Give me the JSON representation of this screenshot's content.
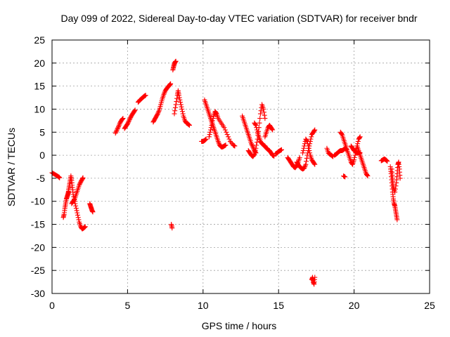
{
  "chart_data": {
    "type": "scatter",
    "title": "Day 099 of 2022, Sidereal Day-to-day VTEC variation (SDTVAR) for receiver bndr",
    "xlabel": "GPS time / hours",
    "ylabel": "SDTVAR / TECUs",
    "xlim": [
      0,
      25
    ],
    "ylim": [
      -30,
      25
    ],
    "xticks": [
      0,
      5,
      10,
      15,
      20,
      25
    ],
    "yticks": [
      -30,
      -25,
      -20,
      -15,
      -10,
      -5,
      0,
      5,
      10,
      15,
      20,
      25
    ],
    "xtick_labels": [
      "0",
      "5",
      "10",
      "15",
      "20",
      "25"
    ],
    "ytick_labels": [
      "-30",
      "-25",
      "-20",
      "-15",
      "-10",
      "-5",
      "0",
      "5",
      "10",
      "15",
      "20",
      "25"
    ],
    "grid": true,
    "marker": "+",
    "color": "#ff0000",
    "series": [
      {
        "name": "seg01",
        "values": [
          [
            0.0,
            -3.8
          ],
          [
            0.15,
            -4.1
          ],
          [
            0.3,
            -4.4
          ],
          [
            0.45,
            -4.7
          ],
          [
            0.5,
            -4.9
          ]
        ]
      },
      {
        "name": "seg02",
        "values": [
          [
            0.75,
            -13.5
          ],
          [
            0.8,
            -12.8
          ],
          [
            0.85,
            -11.5
          ],
          [
            0.9,
            -10.5
          ],
          [
            0.95,
            -9.5
          ],
          [
            1.0,
            -9.0
          ],
          [
            1.05,
            -8.5
          ],
          [
            1.1,
            -8.0
          ]
        ]
      },
      {
        "name": "seg03",
        "values": [
          [
            1.05,
            -8.5
          ],
          [
            1.1,
            -7.5
          ],
          [
            1.15,
            -6.5
          ],
          [
            1.2,
            -5.5
          ],
          [
            1.25,
            -4.5
          ],
          [
            1.3,
            -5.5
          ],
          [
            1.35,
            -7.0
          ],
          [
            1.4,
            -8.5
          ],
          [
            1.5,
            -10.0
          ],
          [
            1.6,
            -11.5
          ],
          [
            1.7,
            -13.0
          ],
          [
            1.8,
            -14.5
          ],
          [
            1.9,
            -15.5
          ],
          [
            2.0,
            -16.0
          ],
          [
            2.1,
            -15.8
          ],
          [
            2.2,
            -15.5
          ]
        ]
      },
      {
        "name": "seg04",
        "values": [
          [
            1.3,
            -10.5
          ],
          [
            1.4,
            -10.0
          ],
          [
            1.5,
            -9.5
          ],
          [
            1.6,
            -8.5
          ],
          [
            1.7,
            -7.5
          ],
          [
            1.8,
            -6.5
          ],
          [
            1.9,
            -5.8
          ],
          [
            2.0,
            -5.2
          ],
          [
            2.05,
            -4.9
          ]
        ]
      },
      {
        "name": "seg05",
        "values": [
          [
            2.5,
            -10.5
          ],
          [
            2.55,
            -11.0
          ],
          [
            2.6,
            -11.5
          ],
          [
            2.65,
            -12.0
          ],
          [
            2.7,
            -12.3
          ]
        ]
      },
      {
        "name": "seg06",
        "values": [
          [
            4.2,
            4.8
          ],
          [
            4.3,
            5.5
          ],
          [
            4.4,
            6.2
          ],
          [
            4.5,
            7.0
          ],
          [
            4.6,
            7.6
          ],
          [
            4.7,
            8.0
          ]
        ]
      },
      {
        "name": "seg07",
        "values": [
          [
            4.8,
            5.8
          ],
          [
            4.9,
            6.3
          ],
          [
            5.0,
            6.8
          ],
          [
            5.1,
            7.5
          ],
          [
            5.2,
            8.2
          ],
          [
            5.3,
            8.8
          ],
          [
            5.4,
            9.3
          ],
          [
            5.5,
            9.8
          ]
        ]
      },
      {
        "name": "seg08",
        "values": [
          [
            5.7,
            11.5
          ],
          [
            5.8,
            11.9
          ],
          [
            5.9,
            12.2
          ],
          [
            6.0,
            12.5
          ],
          [
            6.1,
            12.8
          ],
          [
            6.2,
            13.0
          ]
        ]
      },
      {
        "name": "seg09",
        "values": [
          [
            6.7,
            7.2
          ],
          [
            6.8,
            7.8
          ],
          [
            6.9,
            8.4
          ],
          [
            7.0,
            9.0
          ],
          [
            7.1,
            9.8
          ],
          [
            7.2,
            11.0
          ],
          [
            7.3,
            12.2
          ],
          [
            7.4,
            13.2
          ],
          [
            7.5,
            14.0
          ],
          [
            7.6,
            14.5
          ],
          [
            7.7,
            14.9
          ],
          [
            7.8,
            15.3
          ],
          [
            7.85,
            15.5
          ]
        ]
      },
      {
        "name": "seg10",
        "values": [
          [
            7.9,
            -15.0
          ],
          [
            7.95,
            -15.8
          ]
        ]
      },
      {
        "name": "seg11",
        "values": [
          [
            8.0,
            18.5
          ],
          [
            8.05,
            19.2
          ],
          [
            8.1,
            19.8
          ],
          [
            8.15,
            20.2
          ],
          [
            8.2,
            20.4
          ]
        ]
      },
      {
        "name": "seg12",
        "values": [
          [
            8.1,
            9.0
          ],
          [
            8.2,
            11.0
          ],
          [
            8.3,
            13.0
          ],
          [
            8.35,
            14.0
          ],
          [
            8.4,
            13.0
          ],
          [
            8.5,
            11.5
          ],
          [
            8.6,
            10.0
          ],
          [
            8.7,
            8.5
          ],
          [
            8.8,
            7.5
          ],
          [
            8.9,
            7.0
          ],
          [
            9.0,
            6.8
          ],
          [
            9.1,
            6.5
          ]
        ]
      },
      {
        "name": "seg13",
        "values": [
          [
            9.9,
            3.0
          ],
          [
            10.0,
            3.0
          ],
          [
            10.1,
            3.2
          ],
          [
            10.2,
            3.5
          ]
        ]
      },
      {
        "name": "seg14",
        "values": [
          [
            10.1,
            12.0
          ],
          [
            10.2,
            11.0
          ],
          [
            10.3,
            10.0
          ],
          [
            10.4,
            9.0
          ],
          [
            10.5,
            8.0
          ],
          [
            10.6,
            7.0
          ],
          [
            10.7,
            6.0
          ],
          [
            10.8,
            5.0
          ],
          [
            10.9,
            4.0
          ],
          [
            11.0,
            3.0
          ],
          [
            11.1,
            2.2
          ],
          [
            11.2,
            1.8
          ],
          [
            11.3,
            1.8
          ],
          [
            11.4,
            2.0
          ],
          [
            11.5,
            2.2
          ]
        ]
      },
      {
        "name": "seg15",
        "values": [
          [
            10.4,
            4.0
          ],
          [
            10.5,
            5.5
          ],
          [
            10.6,
            7.0
          ],
          [
            10.7,
            8.5
          ],
          [
            10.8,
            9.5
          ],
          [
            10.9,
            9.0
          ],
          [
            11.0,
            8.0
          ],
          [
            11.2,
            7.0
          ],
          [
            11.4,
            6.0
          ],
          [
            11.6,
            4.5
          ],
          [
            11.8,
            3.0
          ],
          [
            12.0,
            2.2
          ],
          [
            12.1,
            2.0
          ]
        ]
      },
      {
        "name": "seg16",
        "values": [
          [
            12.6,
            8.5
          ],
          [
            12.7,
            7.5
          ],
          [
            12.8,
            6.5
          ],
          [
            12.9,
            5.5
          ],
          [
            13.0,
            4.5
          ],
          [
            13.1,
            3.5
          ],
          [
            13.2,
            2.5
          ],
          [
            13.3,
            1.8
          ],
          [
            13.4,
            1.0
          ],
          [
            13.5,
            0.5
          ]
        ]
      },
      {
        "name": "seg17",
        "values": [
          [
            13.0,
            1.0
          ],
          [
            13.1,
            0.5
          ],
          [
            13.2,
            0.0
          ],
          [
            13.3,
            -0.3
          ],
          [
            13.4,
            0.2
          ],
          [
            13.5,
            1.5
          ],
          [
            13.6,
            3.5
          ],
          [
            13.7,
            6.0
          ],
          [
            13.8,
            9.0
          ],
          [
            13.9,
            11.0
          ],
          [
            14.0,
            10.0
          ],
          [
            14.1,
            8.0
          ]
        ]
      },
      {
        "name": "seg18",
        "values": [
          [
            13.4,
            7.0
          ],
          [
            13.5,
            6.5
          ],
          [
            13.6,
            5.0
          ],
          [
            13.7,
            4.0
          ],
          [
            13.8,
            3.0
          ],
          [
            13.9,
            2.5
          ],
          [
            14.0,
            2.2
          ],
          [
            14.1,
            2.0
          ],
          [
            14.2,
            1.5
          ],
          [
            14.3,
            1.2
          ],
          [
            14.4,
            1.0
          ],
          [
            14.5,
            0.5
          ],
          [
            14.6,
            0.0
          ],
          [
            14.7,
            -0.2
          ]
        ]
      },
      {
        "name": "seg19",
        "values": [
          [
            14.1,
            4.0
          ],
          [
            14.2,
            5.0
          ],
          [
            14.3,
            6.0
          ],
          [
            14.4,
            6.5
          ],
          [
            14.5,
            6.0
          ],
          [
            14.6,
            5.5
          ]
        ]
      },
      {
        "name": "seg20",
        "values": [
          [
            14.8,
            0.3
          ],
          [
            14.9,
            0.5
          ],
          [
            15.0,
            0.8
          ],
          [
            15.1,
            1.0
          ],
          [
            15.2,
            1.2
          ]
        ]
      },
      {
        "name": "seg21",
        "values": [
          [
            15.6,
            -0.5
          ],
          [
            15.7,
            -1.0
          ],
          [
            15.8,
            -1.5
          ],
          [
            15.9,
            -2.0
          ],
          [
            16.0,
            -2.5
          ],
          [
            16.1,
            -2.7
          ],
          [
            16.2,
            -2.3
          ],
          [
            16.3,
            -1.5
          ],
          [
            16.4,
            -0.5
          ]
        ]
      },
      {
        "name": "seg22",
        "values": [
          [
            16.2,
            -1.5
          ],
          [
            16.3,
            -2.0
          ],
          [
            16.4,
            -2.5
          ],
          [
            16.5,
            -2.8
          ],
          [
            16.6,
            -3.0
          ],
          [
            16.7,
            -2.8
          ],
          [
            16.8,
            -2.0
          ],
          [
            16.9,
            0.0
          ],
          [
            17.0,
            1.5
          ],
          [
            17.1,
            3.0
          ],
          [
            17.2,
            4.5
          ],
          [
            17.3,
            5.0
          ],
          [
            17.4,
            5.5
          ]
        ]
      },
      {
        "name": "seg23",
        "values": [
          [
            16.6,
            0.5
          ],
          [
            16.7,
            2.0
          ],
          [
            16.8,
            3.5
          ],
          [
            16.9,
            3.0
          ],
          [
            17.0,
            1.5
          ],
          [
            17.1,
            0.0
          ],
          [
            17.2,
            -1.0
          ],
          [
            17.3,
            -1.5
          ],
          [
            17.4,
            -2.0
          ]
        ]
      },
      {
        "name": "seg24",
        "values": [
          [
            17.2,
            -27.0
          ],
          [
            17.25,
            -26.5
          ],
          [
            17.3,
            -27.5
          ],
          [
            17.35,
            -28.0
          ],
          [
            17.4,
            -26.5
          ]
        ]
      },
      {
        "name": "seg25",
        "values": [
          [
            18.2,
            1.5
          ],
          [
            18.3,
            0.5
          ],
          [
            18.4,
            0.2
          ],
          [
            18.5,
            0.0
          ],
          [
            18.6,
            -0.3
          ]
        ]
      },
      {
        "name": "seg26",
        "values": [
          [
            18.7,
            0.0
          ],
          [
            18.8,
            0.2
          ],
          [
            18.9,
            0.5
          ],
          [
            19.0,
            0.8
          ],
          [
            19.1,
            1.0
          ],
          [
            19.2,
            1.0
          ],
          [
            19.3,
            1.2
          ],
          [
            19.4,
            1.5
          ],
          [
            19.5,
            1.2
          ]
        ]
      },
      {
        "name": "seg27",
        "values": [
          [
            19.3,
            -4.5
          ],
          [
            19.4,
            -4.7
          ]
        ]
      },
      {
        "name": "seg28",
        "values": [
          [
            19.1,
            5.0
          ],
          [
            19.2,
            4.5
          ],
          [
            19.3,
            3.5
          ],
          [
            19.4,
            2.5
          ],
          [
            19.5,
            1.5
          ],
          [
            19.6,
            0.5
          ],
          [
            19.7,
            -0.5
          ],
          [
            19.8,
            -1.5
          ],
          [
            19.9,
            -2.0
          ],
          [
            20.0,
            -1.0
          ],
          [
            20.1,
            0.5
          ],
          [
            20.2,
            2.0
          ],
          [
            20.3,
            3.5
          ],
          [
            20.4,
            4.0
          ]
        ]
      },
      {
        "name": "seg29",
        "values": [
          [
            19.8,
            2.0
          ],
          [
            19.9,
            1.5
          ],
          [
            20.0,
            1.0
          ],
          [
            20.1,
            0.8
          ],
          [
            20.2,
            0.5
          ],
          [
            20.3,
            0.5
          ],
          [
            20.4,
            0.5
          ]
        ]
      },
      {
        "name": "seg30",
        "values": [
          [
            20.2,
            2.0
          ],
          [
            20.3,
            1.0
          ],
          [
            20.4,
            0.0
          ],
          [
            20.5,
            -1.0
          ],
          [
            20.6,
            -2.0
          ],
          [
            20.7,
            -3.0
          ],
          [
            20.8,
            -4.0
          ],
          [
            20.9,
            -4.5
          ]
        ]
      },
      {
        "name": "seg31",
        "values": [
          [
            21.8,
            -1.2
          ],
          [
            21.9,
            -1.0
          ],
          [
            22.0,
            -0.8
          ],
          [
            22.1,
            -1.0
          ],
          [
            22.2,
            -1.3
          ]
        ]
      },
      {
        "name": "seg32",
        "values": [
          [
            22.4,
            -2.5
          ],
          [
            22.45,
            -4.0
          ],
          [
            22.5,
            -6.0
          ],
          [
            22.55,
            -8.0
          ],
          [
            22.6,
            -9.5
          ],
          [
            22.65,
            -10.5
          ],
          [
            22.7,
            -11.0
          ],
          [
            22.75,
            -12.0
          ],
          [
            22.8,
            -13.0
          ],
          [
            22.85,
            -14.0
          ]
        ]
      },
      {
        "name": "seg33",
        "values": [
          [
            22.5,
            -3.0
          ],
          [
            22.55,
            -5.0
          ],
          [
            22.6,
            -7.0
          ],
          [
            22.7,
            -8.0
          ],
          [
            22.8,
            -6.0
          ],
          [
            22.85,
            -4.0
          ],
          [
            22.9,
            -2.0
          ],
          [
            22.95,
            -1.5
          ],
          [
            23.0,
            -3.0
          ],
          [
            23.05,
            -5.0
          ]
        ]
      }
    ]
  }
}
